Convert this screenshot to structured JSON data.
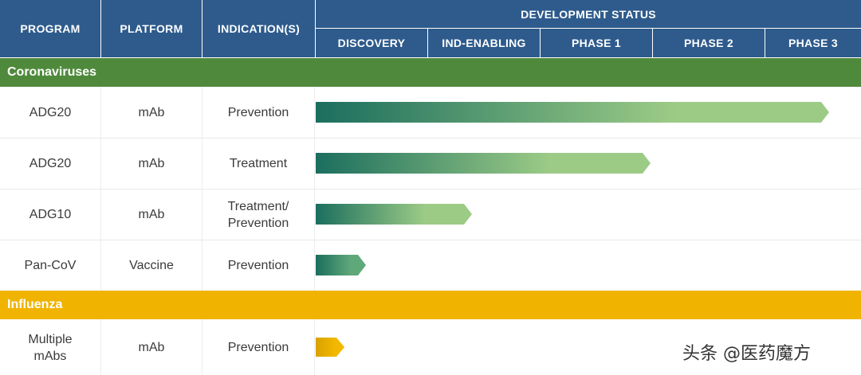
{
  "header": {
    "program": "PROGRAM",
    "platform": "PLATFORM",
    "indication": "INDICATION(S)",
    "development_status": "DEVELOPMENT STATUS",
    "stages": [
      "DISCOVERY",
      "IND-ENABLING",
      "PHASE 1",
      "PHASE 2",
      "PHASE 3"
    ]
  },
  "sections": [
    {
      "label": "Coronaviruses",
      "color": "#4f8a3c"
    },
    {
      "label": "Influenza",
      "color": "#f0b400"
    }
  ],
  "rows": [
    {
      "program": "ADG20",
      "platform": "mAb",
      "indication": "Prevention",
      "progress_stages": 4.6,
      "bar_colors": [
        "#1b6e5e",
        "#9ccb86"
      ]
    },
    {
      "program": "ADG20",
      "platform": "mAb",
      "indication": "Treatment",
      "progress_stages": 3.0,
      "bar_colors": [
        "#1b6e5e",
        "#9ccb86"
      ]
    },
    {
      "program": "ADG10",
      "platform": "mAb",
      "indication": "Treatment/\nPrevention",
      "progress_stages": 1.4,
      "bar_colors": [
        "#1b6e5e",
        "#9ccb86"
      ]
    },
    {
      "program": "Pan-CoV",
      "platform": "Vaccine",
      "indication": "Prevention",
      "progress_stages": 0.45,
      "bar_colors": [
        "#1b6e5e",
        "#5fa87a"
      ]
    },
    {
      "program": "Multiple\nmAbs",
      "platform": "mAb",
      "indication": "Prevention",
      "progress_stages": 0.26,
      "bar_colors": [
        "#d9a200",
        "#f3b800"
      ]
    }
  ],
  "watermark": "头条 @医药魔方"
}
